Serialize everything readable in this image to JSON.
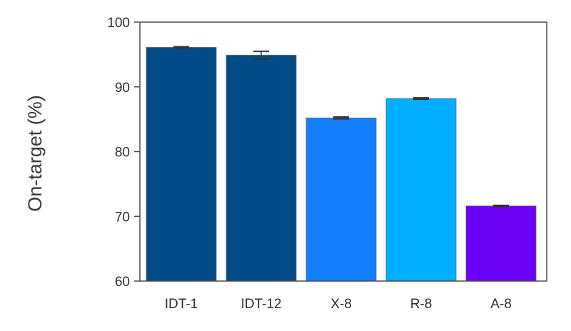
{
  "chart_data": {
    "type": "bar",
    "title": "",
    "xlabel": "",
    "ylabel": "On-target (%)",
    "ylim": [
      60,
      100
    ],
    "yticks": [
      60,
      70,
      80,
      90,
      100
    ],
    "categories": [
      "IDT-1",
      "IDT-12",
      "X-8",
      "R-8",
      "A-8"
    ],
    "values": [
      96.1,
      94.9,
      85.2,
      88.2,
      71.6
    ],
    "errors": [
      0.1,
      0.6,
      0.15,
      0.1,
      0.1
    ],
    "bar_colors": [
      "#004b87",
      "#004b87",
      "#1580ff",
      "#00aeff",
      "#6a00f4"
    ],
    "grid": false,
    "legend": "none"
  }
}
